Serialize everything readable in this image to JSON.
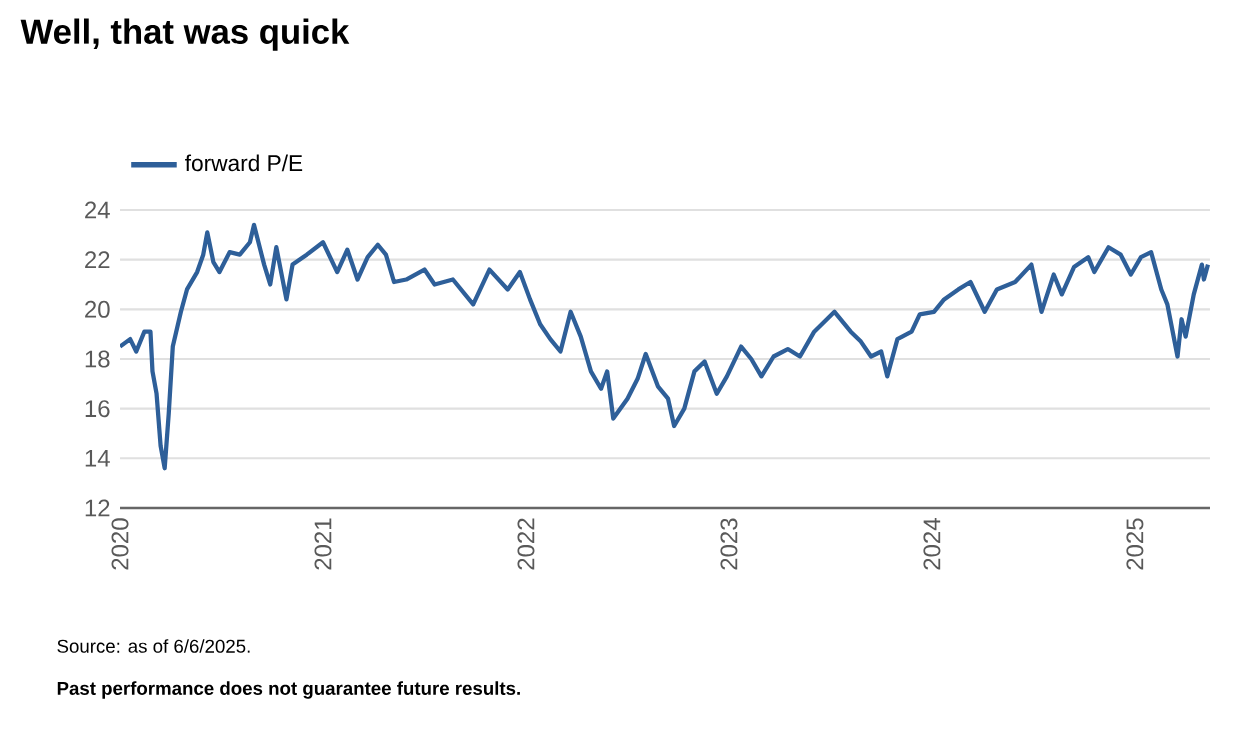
{
  "chart_data": {
    "type": "line",
    "title": "Well, that was quick",
    "x": [
      2020.0,
      2020.05,
      2020.08,
      2020.12,
      2020.15,
      2020.16,
      2020.18,
      2020.2,
      2020.22,
      2020.24,
      2020.26,
      2020.3,
      2020.33,
      2020.38,
      2020.41,
      2020.43,
      2020.46,
      2020.49,
      2020.54,
      2020.59,
      2020.64,
      2020.66,
      2020.71,
      2020.74,
      2020.77,
      2020.82,
      2020.85,
      2020.92,
      2021.0,
      2021.07,
      2021.12,
      2021.17,
      2021.22,
      2021.27,
      2021.31,
      2021.35,
      2021.41,
      2021.5,
      2021.55,
      2021.64,
      2021.74,
      2021.82,
      2021.91,
      2021.97,
      2022.02,
      2022.07,
      2022.12,
      2022.17,
      2022.22,
      2022.27,
      2022.32,
      2022.37,
      2022.4,
      2022.43,
      2022.5,
      2022.55,
      2022.59,
      2022.65,
      2022.7,
      2022.73,
      2022.78,
      2022.83,
      2022.88,
      2022.94,
      2022.99,
      2023.06,
      2023.11,
      2023.16,
      2023.22,
      2023.29,
      2023.35,
      2023.42,
      2023.47,
      2023.52,
      2023.6,
      2023.65,
      2023.7,
      2023.75,
      2023.78,
      2023.83,
      2023.9,
      2023.94,
      2024.01,
      2024.06,
      2024.13,
      2024.19,
      2024.26,
      2024.32,
      2024.41,
      2024.49,
      2024.54,
      2024.6,
      2024.64,
      2024.7,
      2024.77,
      2024.8,
      2024.87,
      2024.93,
      2024.98,
      2025.03,
      2025.08,
      2025.13,
      2025.16,
      2025.21,
      2025.23,
      2025.25,
      2025.29,
      2025.33,
      2025.34,
      2025.36
    ],
    "series": [
      {
        "name": "forward P/E",
        "color": "#2e5f99",
        "values": [
          18.5,
          18.8,
          18.3,
          19.1,
          19.1,
          17.5,
          16.6,
          14.5,
          13.6,
          15.8,
          18.5,
          19.9,
          20.8,
          21.5,
          22.2,
          23.1,
          21.9,
          21.5,
          22.3,
          22.2,
          22.7,
          23.4,
          21.8,
          21.0,
          22.5,
          20.4,
          21.8,
          22.2,
          22.7,
          21.5,
          22.4,
          21.2,
          22.1,
          22.6,
          22.2,
          21.1,
          21.2,
          21.6,
          21.0,
          21.2,
          20.2,
          21.6,
          20.8,
          21.5,
          20.4,
          19.4,
          18.8,
          18.3,
          19.9,
          18.9,
          17.5,
          16.8,
          17.5,
          15.6,
          16.4,
          17.2,
          18.2,
          16.9,
          16.4,
          15.3,
          16.0,
          17.5,
          17.9,
          16.6,
          17.3,
          18.5,
          18.0,
          17.3,
          18.1,
          18.4,
          18.1,
          19.1,
          19.5,
          19.9,
          19.1,
          18.7,
          18.1,
          18.3,
          17.3,
          18.8,
          19.1,
          19.8,
          19.9,
          20.4,
          20.8,
          21.1,
          19.9,
          20.8,
          21.1,
          21.8,
          19.9,
          21.4,
          20.6,
          21.7,
          22.1,
          21.5,
          22.5,
          22.2,
          21.4,
          22.1,
          22.3,
          20.8,
          20.2,
          18.1,
          19.6,
          18.9,
          20.6,
          21.8,
          21.2,
          21.8
        ]
      }
    ],
    "xlim": [
      2020,
      2025.37
    ],
    "xticks": [
      2020,
      2021,
      2022,
      2023,
      2024,
      2025
    ],
    "ylim": [
      12,
      24
    ],
    "yticks": [
      12,
      14,
      16,
      18,
      20,
      22,
      24
    ],
    "grid": "y",
    "legend": "top left",
    "marker": "none",
    "line_style": "solid",
    "annotations": [
      "Source: as of 6/6/2025.",
      "Past performance does not guarantee future results."
    ]
  }
}
